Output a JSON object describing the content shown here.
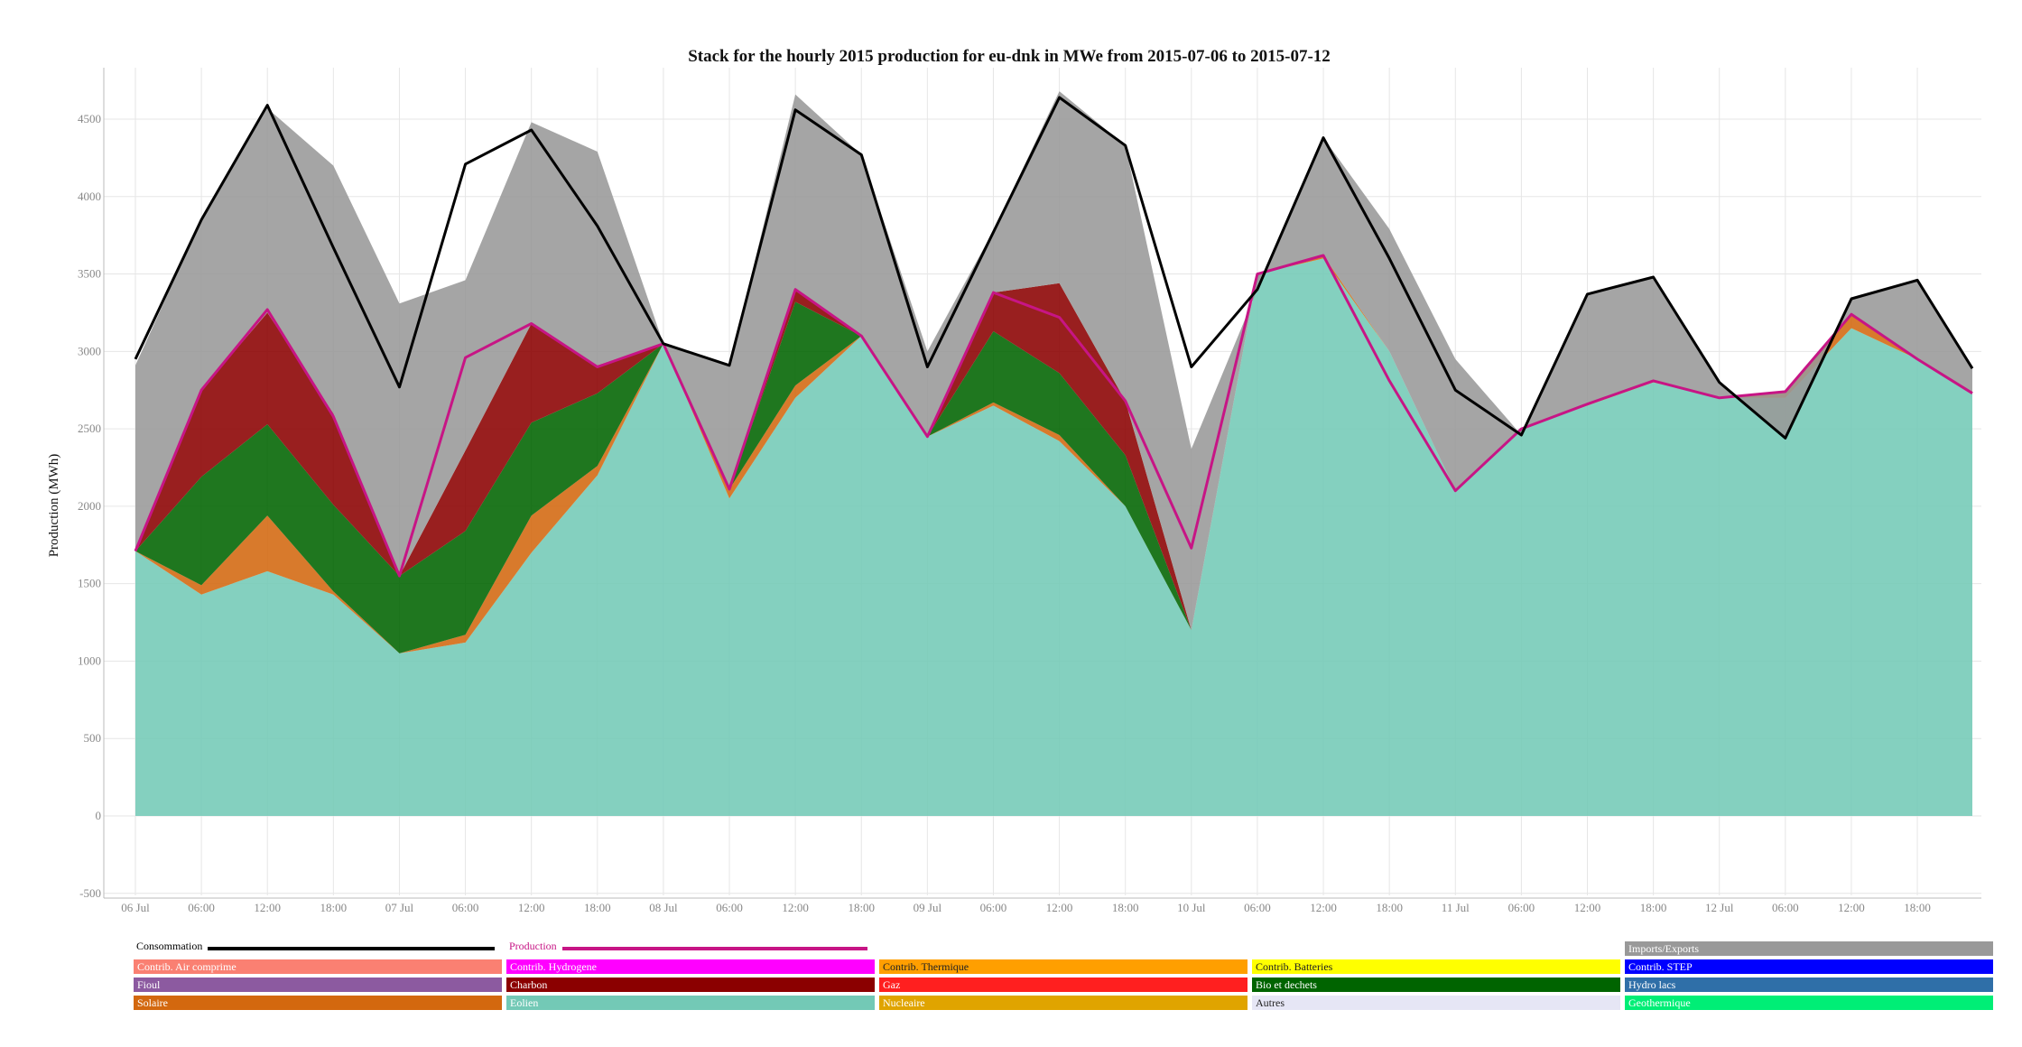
{
  "chart_data": {
    "type": "area",
    "title": "Stack for the hourly 2015 production for eu-dnk in MWe from 2015-07-06 to 2015-07-12",
    "ylabel": "Production (MWh)",
    "ylim": [
      -500,
      4800
    ],
    "y_ticks": [
      "-500",
      "0",
      "500",
      "1000",
      "1500",
      "2000",
      "2500",
      "3000",
      "3500",
      "4000",
      "4500"
    ],
    "x_ticks": [
      "06 Jul",
      "06:00",
      "12:00",
      "18:00",
      "07 Jul",
      "06:00",
      "12:00",
      "18:00",
      "08 Jul",
      "06:00",
      "12:00",
      "18:00",
      "09 Jul",
      "06:00",
      "12:00",
      "18:00",
      "10 Jul",
      "06:00",
      "12:00",
      "18:00",
      "11 Jul",
      "06:00",
      "12:00",
      "18:00",
      "12 Jul",
      "06:00",
      "12:00",
      "18:00"
    ],
    "x_keypoints_hours": [
      0,
      6,
      12,
      18,
      24,
      30,
      36,
      42,
      48,
      54,
      60,
      66,
      72,
      78,
      84,
      90,
      96,
      102,
      108,
      114,
      120,
      126,
      132,
      138,
      144,
      150,
      156,
      162,
      167
    ],
    "series": [
      {
        "name": "Eolien",
        "color": "#73c9b6",
        "values": [
          1710,
          1430,
          1580,
          1430,
          1050,
          1120,
          1700,
          2200,
          3050,
          2050,
          2700,
          3100,
          2450,
          2650,
          2420,
          2000,
          1200,
          3500,
          3600,
          3000,
          2100,
          2500,
          2650,
          2800,
          2700,
          2700,
          3150,
          2950,
          2730
        ]
      },
      {
        "name": "Solaire",
        "color": "#d3680f",
        "values": [
          0,
          60,
          360,
          20,
          0,
          50,
          240,
          60,
          0,
          60,
          80,
          0,
          0,
          20,
          40,
          0,
          0,
          0,
          20,
          0,
          0,
          0,
          10,
          10,
          0,
          40,
          90,
          10,
          0
        ]
      },
      {
        "name": "Bio et dechets",
        "color": "#006400",
        "values": [
          0,
          700,
          590,
          560,
          500,
          670,
          600,
          470,
          0,
          0,
          540,
          0,
          0,
          460,
          400,
          330,
          0,
          0,
          0,
          0,
          0,
          0,
          0,
          0,
          0,
          0,
          0,
          0,
          0
        ]
      },
      {
        "name": "Charbon",
        "color": "#8b0000",
        "values": [
          0,
          560,
          720,
          590,
          0,
          520,
          640,
          180,
          0,
          0,
          80,
          0,
          0,
          250,
          580,
          350,
          0,
          0,
          0,
          0,
          0,
          0,
          0,
          0,
          0,
          0,
          0,
          0,
          0
        ]
      },
      {
        "name": "Imports/Exports",
        "color": "#999999",
        "values": [
          1200,
          1100,
          1320,
          1600,
          1760,
          1100,
          1300,
          1380,
          0,
          800,
          1260,
          1170,
          550,
          400,
          1240,
          1650,
          1170,
          -100,
          760,
          790,
          850,
          -40,
          710,
          670,
          100,
          -300,
          100,
          510,
          160
        ]
      }
    ],
    "lines": [
      {
        "name": "Consommation",
        "color": "#000000",
        "values": [
          2950,
          3850,
          4590,
          3670,
          2770,
          4210,
          4430,
          3810,
          3050,
          2910,
          4560,
          4270,
          2900,
          3770,
          4640,
          4330,
          2900,
          3400,
          4380,
          3600,
          2750,
          2460,
          3370,
          3480,
          2800,
          2440,
          3340,
          3460,
          2890
        ]
      },
      {
        "name": "Production",
        "color": "#c71585",
        "values": [
          1710,
          2750,
          3270,
          2580,
          1550,
          2960,
          3180,
          2900,
          3050,
          2110,
          3400,
          3100,
          2450,
          3380,
          3220,
          2680,
          1730,
          3500,
          3620,
          2810,
          2100,
          2500,
          2660,
          2810,
          2700,
          2740,
          3240,
          2950,
          2730
        ]
      }
    ],
    "legend": [
      {
        "label": "Consommation",
        "kind": "line",
        "color": "#000000"
      },
      {
        "label": "Production",
        "kind": "line",
        "color": "#c71585"
      },
      {
        "label": "Imports/Exports",
        "kind": "box",
        "color": "#999999"
      },
      {
        "label": "Contrib. Air comprime",
        "kind": "box",
        "color": "#fa8072"
      },
      {
        "label": "Contrib. Hydrogene",
        "kind": "box",
        "color": "#ff00ff"
      },
      {
        "label": "Contrib. Thermique",
        "kind": "box",
        "color": "#ff9f00"
      },
      {
        "label": "Contrib. Batteries",
        "kind": "box",
        "color": "#ffff00"
      },
      {
        "label": "Contrib. STEP",
        "kind": "box",
        "color": "#0000ff"
      },
      {
        "label": "Fioul",
        "kind": "box",
        "color": "#8c5aa0"
      },
      {
        "label": "Charbon",
        "kind": "box",
        "color": "#8b0000"
      },
      {
        "label": "Gaz",
        "kind": "box",
        "color": "#ff1f1f"
      },
      {
        "label": "Bio et dechets",
        "kind": "box",
        "color": "#006400"
      },
      {
        "label": "Hydro lacs",
        "kind": "box",
        "color": "#2f6fa8"
      },
      {
        "label": "Solaire",
        "kind": "box",
        "color": "#d3680f"
      },
      {
        "label": "Eolien",
        "kind": "box",
        "color": "#73c9b6"
      },
      {
        "label": "Nucleaire",
        "kind": "box",
        "color": "#e0a400"
      },
      {
        "label": "Autres",
        "kind": "box",
        "color": "#e6e6f5"
      },
      {
        "label": "Geothermique",
        "kind": "box",
        "color": "#00ee76"
      }
    ]
  }
}
